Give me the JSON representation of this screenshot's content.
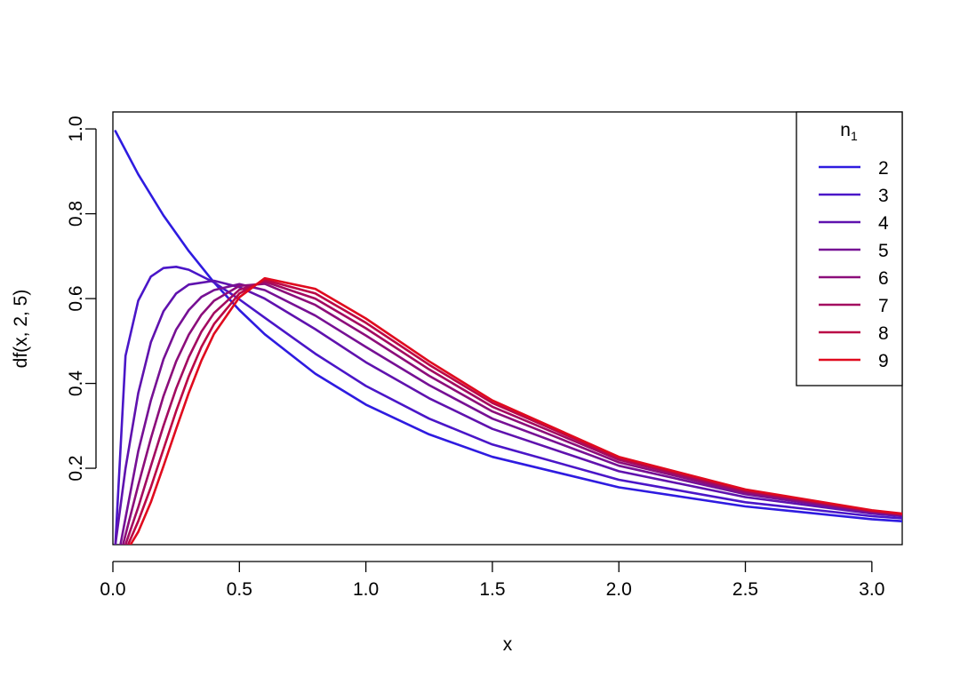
{
  "chart_data": {
    "type": "line",
    "title": "",
    "xlabel": "x",
    "ylabel": "df(x, 2, 5)",
    "xlim": [
      0,
      3.12
    ],
    "ylim": [
      0.02,
      1.04
    ],
    "x_ticks": [
      {
        "value": 0.0,
        "label": "0.0"
      },
      {
        "value": 0.5,
        "label": "0.5"
      },
      {
        "value": 1.0,
        "label": "1.0"
      },
      {
        "value": 1.5,
        "label": "1.5"
      },
      {
        "value": 2.0,
        "label": "2.0"
      },
      {
        "value": 2.5,
        "label": "2.5"
      },
      {
        "value": 3.0,
        "label": "3.0"
      }
    ],
    "y_ticks": [
      {
        "value": 0.2,
        "label": "0.2"
      },
      {
        "value": 0.4,
        "label": "0.4"
      },
      {
        "value": 0.6,
        "label": "0.6"
      },
      {
        "value": 0.8,
        "label": "0.8"
      },
      {
        "value": 1.0,
        "label": "1.0"
      }
    ],
    "grid": false,
    "legend": {
      "position": "top-right",
      "title_main": "n",
      "title_sub": "1"
    },
    "series": [
      {
        "name": "2",
        "color": "#2E1BE0",
        "x": [
          0.01,
          0.1,
          0.2,
          0.3,
          0.4,
          0.5,
          0.6,
          0.8,
          1.0,
          1.25,
          1.5,
          2.0,
          2.5,
          3.0,
          3.12
        ],
        "y": [
          0.995,
          0.893,
          0.796,
          0.712,
          0.638,
          0.573,
          0.516,
          0.423,
          0.35,
          0.28,
          0.227,
          0.155,
          0.11,
          0.08,
          0.075
        ]
      },
      {
        "name": "3",
        "color": "#4A16C8",
        "x": [
          0.01,
          0.05,
          0.1,
          0.15,
          0.2,
          0.25,
          0.3,
          0.4,
          0.5,
          0.6,
          0.8,
          1.0,
          1.25,
          1.5,
          2.0,
          2.5,
          3.0,
          3.12
        ],
        "y": [
          0.02,
          0.465,
          0.595,
          0.652,
          0.672,
          0.675,
          0.668,
          0.638,
          0.598,
          0.555,
          0.47,
          0.394,
          0.317,
          0.256,
          0.173,
          0.12,
          0.087,
          0.082
        ]
      },
      {
        "name": "4",
        "color": "#5F12AE",
        "x": [
          0.01,
          0.05,
          0.1,
          0.15,
          0.2,
          0.25,
          0.3,
          0.4,
          0.5,
          0.6,
          0.8,
          1.0,
          1.25,
          1.5,
          2.0,
          2.5,
          3.0,
          3.12
        ],
        "y": [
          0.02,
          0.2,
          0.377,
          0.497,
          0.57,
          0.612,
          0.633,
          0.642,
          0.627,
          0.6,
          0.528,
          0.45,
          0.365,
          0.293,
          0.193,
          0.132,
          0.093,
          0.087
        ]
      },
      {
        "name": "5",
        "color": "#761094",
        "x": [
          0.03,
          0.1,
          0.15,
          0.2,
          0.25,
          0.3,
          0.35,
          0.4,
          0.5,
          0.6,
          0.8,
          1.0,
          1.25,
          1.5,
          2.0,
          2.5,
          3.0,
          3.12
        ],
        "y": [
          0.02,
          0.24,
          0.36,
          0.457,
          0.527,
          0.573,
          0.604,
          0.62,
          0.634,
          0.62,
          0.56,
          0.486,
          0.396,
          0.317,
          0.206,
          0.139,
          0.096,
          0.089
        ]
      },
      {
        "name": "6",
        "color": "#8C0D7A",
        "x": [
          0.04,
          0.1,
          0.15,
          0.2,
          0.25,
          0.3,
          0.35,
          0.4,
          0.5,
          0.6,
          0.8,
          1.0,
          1.25,
          1.5,
          2.0,
          2.5,
          3.0,
          3.12
        ],
        "y": [
          0.02,
          0.16,
          0.27,
          0.37,
          0.452,
          0.515,
          0.562,
          0.595,
          0.63,
          0.635,
          0.585,
          0.513,
          0.418,
          0.334,
          0.214,
          0.143,
          0.098,
          0.09
        ]
      },
      {
        "name": "7",
        "color": "#A30A60",
        "x": [
          0.05,
          0.1,
          0.15,
          0.2,
          0.25,
          0.3,
          0.35,
          0.4,
          0.5,
          0.6,
          0.8,
          1.0,
          1.25,
          1.5,
          2.0,
          2.5,
          3.0,
          3.12
        ],
        "y": [
          0.02,
          0.108,
          0.205,
          0.3,
          0.388,
          0.462,
          0.522,
          0.566,
          0.621,
          0.64,
          0.6,
          0.53,
          0.433,
          0.345,
          0.22,
          0.146,
          0.099,
          0.091
        ]
      },
      {
        "name": "8",
        "color": "#BA0746",
        "x": [
          0.06,
          0.1,
          0.15,
          0.2,
          0.25,
          0.3,
          0.35,
          0.4,
          0.5,
          0.6,
          0.8,
          1.0,
          1.25,
          1.5,
          2.0,
          2.5,
          3.0,
          3.12
        ],
        "y": [
          0.02,
          0.075,
          0.155,
          0.245,
          0.335,
          0.417,
          0.486,
          0.54,
          0.612,
          0.644,
          0.612,
          0.543,
          0.444,
          0.354,
          0.224,
          0.148,
          0.1,
          0.092
        ]
      },
      {
        "name": "9",
        "color": "#E00A1E",
        "x": [
          0.07,
          0.1,
          0.15,
          0.2,
          0.25,
          0.3,
          0.35,
          0.4,
          0.5,
          0.6,
          0.8,
          1.0,
          1.25,
          1.5,
          2.0,
          2.5,
          3.0,
          3.12
        ],
        "y": [
          0.02,
          0.05,
          0.12,
          0.205,
          0.293,
          0.378,
          0.454,
          0.517,
          0.603,
          0.648,
          0.623,
          0.553,
          0.452,
          0.36,
          0.227,
          0.15,
          0.101,
          0.093
        ]
      }
    ]
  }
}
